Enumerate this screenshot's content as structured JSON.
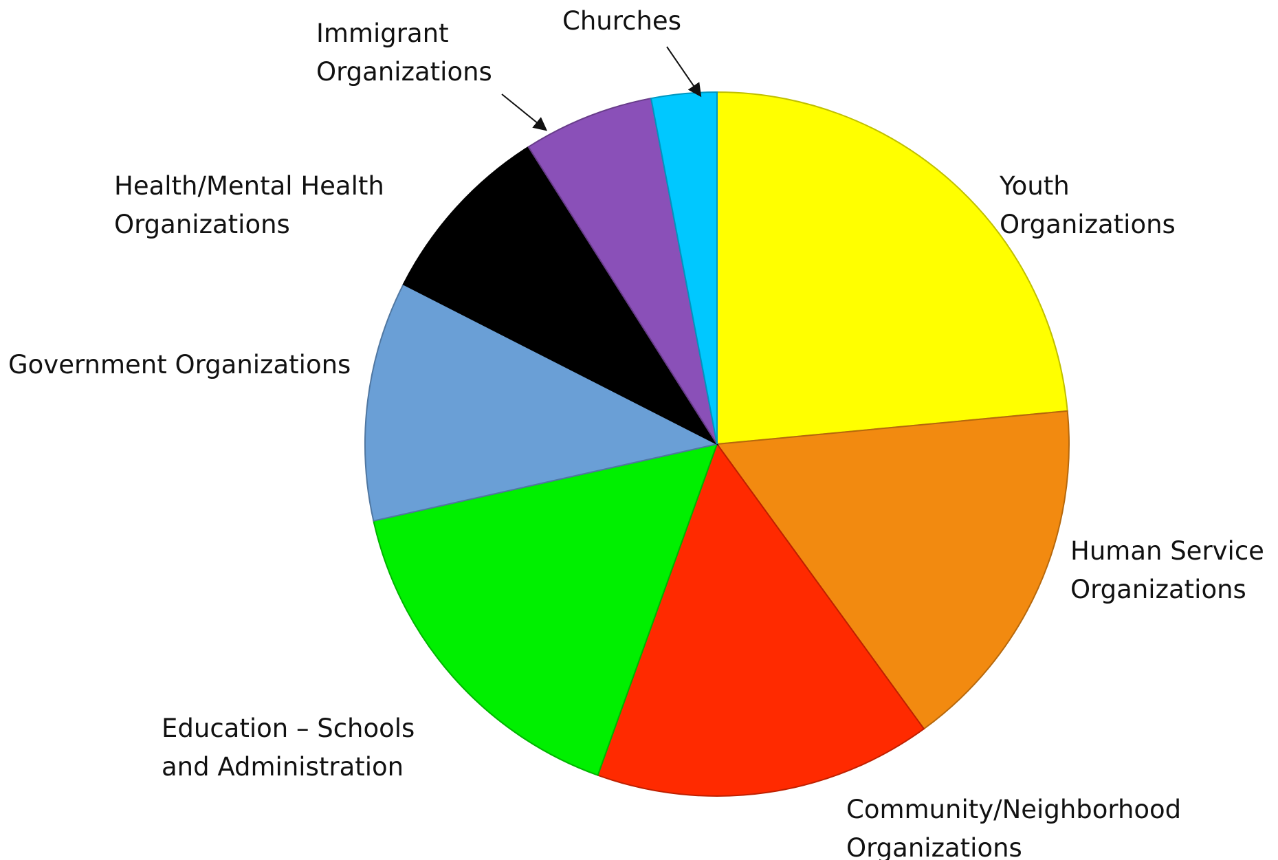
{
  "chart_data": {
    "type": "pie",
    "title": "",
    "start": "12 o'clock",
    "direction": "clockwise",
    "legend": "none",
    "slices": [
      {
        "label": [
          "Youth",
          "Organizations"
        ],
        "value": 23.5,
        "color": "#FFFF00"
      },
      {
        "label": [
          "Human Service",
          "Organizations"
        ],
        "value": 16.5,
        "color": "#F28A10"
      },
      {
        "label": [
          "Community/Neighborhood",
          "Organizations"
        ],
        "value": 15.5,
        "color": "#FF2A00"
      },
      {
        "label": [
          "Education – Schools",
          "and Administration"
        ],
        "value": 16,
        "color": "#00F000"
      },
      {
        "label": [
          "Government Organizations"
        ],
        "value": 11,
        "color": "#6A9FD6"
      },
      {
        "label": [
          "Health/Mental Health",
          "Organizations"
        ],
        "value": 8.5,
        "color": "#000000"
      },
      {
        "label": [
          "Immigrant",
          "Organizations"
        ],
        "value": 6,
        "color": "#8A50B8"
      },
      {
        "label": [
          "Churches"
        ],
        "value": 3,
        "color": "#00C8FF"
      }
    ]
  }
}
